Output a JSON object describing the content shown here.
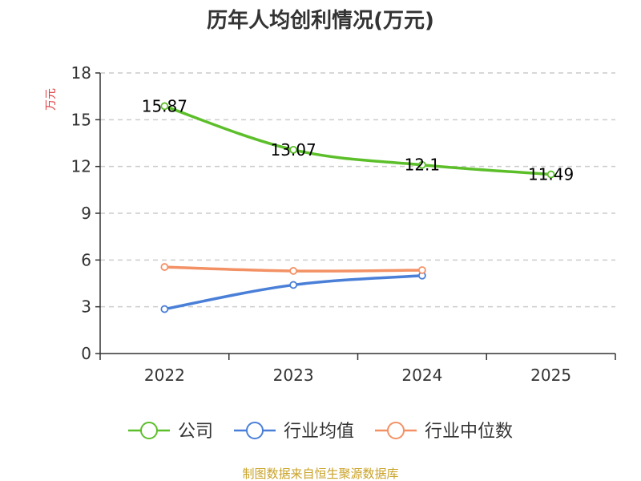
{
  "chart_data": {
    "type": "line",
    "title": "历年人均创利情况(万元)",
    "ylabel": "万元",
    "ylim": [
      0,
      18
    ],
    "yticks": [
      0,
      3,
      6,
      9,
      12,
      15,
      18
    ],
    "categories": [
      "2022",
      "2023",
      "2024",
      "2025"
    ],
    "grid": true,
    "legend_position": "bottom",
    "series": [
      {
        "name": "公司",
        "color": "#5cbf2a",
        "values": [
          15.87,
          13.07,
          12.1,
          11.49
        ],
        "labels": [
          "15.87",
          "13.07",
          "12.1",
          "11.49"
        ]
      },
      {
        "name": "行业均值",
        "color": "#4a7fd8",
        "values": [
          2.85,
          4.4,
          5.0,
          null
        ]
      },
      {
        "name": "行业中位数",
        "color": "#f39165",
        "values": [
          5.55,
          5.3,
          5.35,
          null
        ]
      }
    ]
  },
  "colors": {
    "ylabel": "#e0383e",
    "source": "#c9a227",
    "axis": "#333333",
    "grid": "#cccccc"
  },
  "source": "制图数据来自恒生聚源数据库"
}
